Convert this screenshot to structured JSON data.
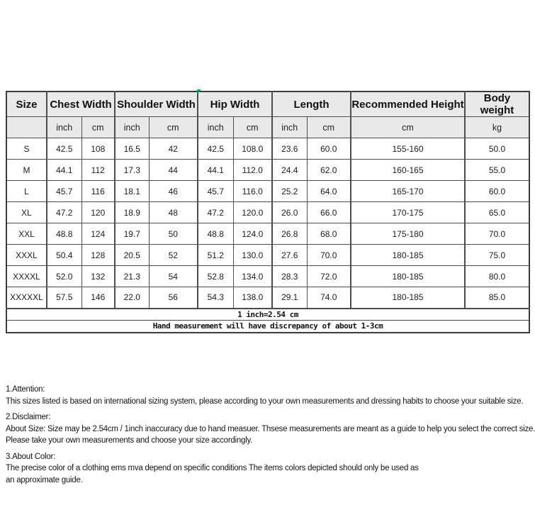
{
  "table": {
    "header_bg": "#e9e9e9",
    "border_color": "#4d4d4d",
    "corner_marker_color": "#00a651",
    "header_groups": [
      {
        "label": "Size"
      },
      {
        "label": "Chest Width"
      },
      {
        "label": "Shoulder Width"
      },
      {
        "label": "Hip Width"
      },
      {
        "label": "Length"
      },
      {
        "label": "Recommended Height"
      },
      {
        "label": "Body weight"
      }
    ],
    "subheaders": [
      "",
      "inch",
      "cm",
      "inch",
      "cm",
      "inch",
      "cm",
      "inch",
      "cm",
      "cm",
      "kg"
    ],
    "rows": [
      [
        "S",
        "42.5",
        "108",
        "16.5",
        "42",
        "42.5",
        "108.0",
        "23.6",
        "60.0",
        "155-160",
        "50.0"
      ],
      [
        "M",
        "44.1",
        "112",
        "17.3",
        "44",
        "44.1",
        "112.0",
        "24.4",
        "62.0",
        "160-165",
        "55.0"
      ],
      [
        "L",
        "45.7",
        "116",
        "18.1",
        "46",
        "45.7",
        "116.0",
        "25.2",
        "64.0",
        "165-170",
        "60.0"
      ],
      [
        "XL",
        "47.2",
        "120",
        "18.9",
        "48",
        "47.2",
        "120.0",
        "26.0",
        "66.0",
        "170-175",
        "65.0"
      ],
      [
        "XXL",
        "48.8",
        "124",
        "19.7",
        "50",
        "48.8",
        "124.0",
        "26.8",
        "68.0",
        "175-180",
        "70.0"
      ],
      [
        "XXXL",
        "50.4",
        "128",
        "20.5",
        "52",
        "51.2",
        "130.0",
        "27.6",
        "70.0",
        "180-185",
        "75.0"
      ],
      [
        "XXXXL",
        "52.0",
        "132",
        "21.3",
        "54",
        "52.8",
        "134.0",
        "28.3",
        "72.0",
        "180-185",
        "80.0"
      ],
      [
        "XXXXXL",
        "57.5",
        "146",
        "22.0",
        "56",
        "54.3",
        "138.0",
        "29.1",
        "74.0",
        "180-185",
        "85.0"
      ]
    ],
    "notes": [
      "1 inch=2.54 cm",
      "Hand measurement will have discrepancy of about 1-3cm"
    ]
  },
  "sections": [
    {
      "title": "1.Attention:",
      "lines": [
        "This sizes listed is based on international sizing system, please according to your own measurements and dressing habits to choose your suitable size."
      ]
    },
    {
      "title": "2.Disclaimer:",
      "lines": [
        "About Size: Size may be 2.54cm / 1inch inaccuracy due to hand measuer. Thsese measurements are meant as a guide to help you select the correct size.",
        "Please take your own measurements and choose your size accordingly."
      ]
    },
    {
      "title": "3.About Color:",
      "lines": [
        "The precise color of a clothing ems mva depend on specific conditions The items colors depicted should only be used as",
        "an approximate guide."
      ]
    }
  ]
}
